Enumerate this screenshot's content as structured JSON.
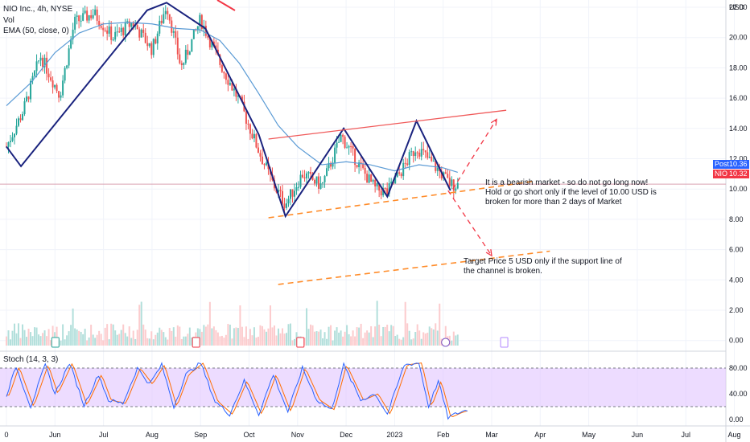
{
  "header": {
    "symbol_line": "NIO Inc., 4h, NYSE",
    "vol_label": "Vol",
    "ema_label": "EMA (50, close, 0)",
    "stoch_label": "Stoch (14, 3, 3)"
  },
  "price_tags": [
    {
      "name": "Post",
      "value": "10.36",
      "color": "#2962ff"
    },
    {
      "name": "NIO",
      "value": "10.32",
      "color": "#f23645"
    }
  ],
  "annotations": [
    {
      "lines": [
        "It is a bearish market - so do not go long now!",
        "Hold or go short only if the level of 10.00 USD is",
        "broken for more than 2 days of Market"
      ]
    },
    {
      "lines": [
        "Target Price 5 USD only if the support line of",
        "the channel is broken."
      ]
    }
  ],
  "colors": {
    "up": "#26a69a",
    "down": "#ef5350",
    "ema": "#5b9bd5",
    "pattern": "#1a237e",
    "resistance": "#f05a5a",
    "support": "#ff8c2a",
    "projection": "#f23645",
    "stoch_band": "#e1c4ff",
    "stoch_k": "#2962ff",
    "stoch_d": "#ff6d00"
  },
  "chart_data": [
    {
      "type": "candlestick",
      "unit": "USD",
      "y_ticks": [
        "22.00",
        "20.00",
        "18.00",
        "16.00",
        "14.00",
        "12.00",
        "10.00",
        "8.00",
        "6.00",
        "4.00",
        "2.00",
        "0.00"
      ],
      "x_ticks": [
        "0",
        "Jun",
        "Jul",
        "Aug",
        "Sep",
        "Oct",
        "Nov",
        "Dec",
        "2023",
        "Feb",
        "Mar",
        "Apr",
        "May",
        "Jun",
        "Jul",
        "Aug"
      ],
      "ylim": [
        -0.7,
        22.4
      ],
      "pattern_points": [
        {
          "x": 0.0,
          "y": 12.8
        },
        {
          "x": 0.3,
          "y": 11.5
        },
        {
          "x": 2.9,
          "y": 21.8
        },
        {
          "x": 3.3,
          "y": 22.3
        },
        {
          "x": 4.1,
          "y": 20.6
        },
        {
          "x": 5.2,
          "y": 13.6
        },
        {
          "x": 5.75,
          "y": 8.2
        },
        {
          "x": 6.95,
          "y": 14.0
        },
        {
          "x": 7.85,
          "y": 9.5
        },
        {
          "x": 8.45,
          "y": 14.5
        },
        {
          "x": 9.15,
          "y": 9.9
        }
      ],
      "resistance_line": [
        {
          "x": 5.4,
          "y": 13.3
        },
        {
          "x": 10.3,
          "y": 15.2
        }
      ],
      "support_line": [
        {
          "x": 5.4,
          "y": 8.1
        },
        {
          "x": 10.85,
          "y": 10.5
        }
      ],
      "target_line": [
        {
          "x": 5.6,
          "y": 3.7
        },
        {
          "x": 11.2,
          "y": 5.9
        }
      ],
      "projection_up": [
        {
          "x": 9.2,
          "y": 10.0
        },
        {
          "x": 10.1,
          "y": 14.6
        }
      ],
      "projection_down": [
        {
          "x": 9.1,
          "y": 9.9
        },
        {
          "x": 10.0,
          "y": 5.6
        }
      ],
      "ema_points": [
        {
          "x": 0.0,
          "y": 15.5
        },
        {
          "x": 0.5,
          "y": 17.0
        },
        {
          "x": 1.0,
          "y": 19.0
        },
        {
          "x": 1.5,
          "y": 20.3
        },
        {
          "x": 2.0,
          "y": 20.9
        },
        {
          "x": 2.5,
          "y": 21.0
        },
        {
          "x": 3.0,
          "y": 20.9
        },
        {
          "x": 3.5,
          "y": 20.6
        },
        {
          "x": 4.0,
          "y": 20.5
        },
        {
          "x": 4.4,
          "y": 19.8
        },
        {
          "x": 4.8,
          "y": 18.3
        },
        {
          "x": 5.2,
          "y": 16.3
        },
        {
          "x": 5.6,
          "y": 14.2
        },
        {
          "x": 6.0,
          "y": 12.8
        },
        {
          "x": 6.5,
          "y": 11.6
        },
        {
          "x": 7.0,
          "y": 11.8
        },
        {
          "x": 7.5,
          "y": 11.6
        },
        {
          "x": 8.0,
          "y": 11.2
        },
        {
          "x": 8.5,
          "y": 11.6
        },
        {
          "x": 9.0,
          "y": 11.4
        },
        {
          "x": 9.3,
          "y": 11.1
        }
      ],
      "price_anchors": [
        {
          "x": 0.0,
          "y": 12.8
        },
        {
          "x": 0.35,
          "y": 15.2
        },
        {
          "x": 0.7,
          "y": 18.8
        },
        {
          "x": 1.1,
          "y": 16.2
        },
        {
          "x": 1.4,
          "y": 21.0
        },
        {
          "x": 1.8,
          "y": 21.6
        },
        {
          "x": 2.2,
          "y": 20.0
        },
        {
          "x": 2.6,
          "y": 21.0
        },
        {
          "x": 3.0,
          "y": 19.2
        },
        {
          "x": 3.3,
          "y": 22.2
        },
        {
          "x": 3.6,
          "y": 18.0
        },
        {
          "x": 4.0,
          "y": 21.2
        },
        {
          "x": 4.4,
          "y": 18.3
        },
        {
          "x": 4.8,
          "y": 15.8
        },
        {
          "x": 5.2,
          "y": 12.5
        },
        {
          "x": 5.5,
          "y": 10.3
        },
        {
          "x": 5.75,
          "y": 9.0
        },
        {
          "x": 6.1,
          "y": 11.0
        },
        {
          "x": 6.5,
          "y": 10.2
        },
        {
          "x": 6.9,
          "y": 13.5
        },
        {
          "x": 7.3,
          "y": 11.4
        },
        {
          "x": 7.6,
          "y": 10.0
        },
        {
          "x": 7.85,
          "y": 9.8
        },
        {
          "x": 8.2,
          "y": 11.5
        },
        {
          "x": 8.45,
          "y": 12.8
        },
        {
          "x": 8.8,
          "y": 11.6
        },
        {
          "x": 9.15,
          "y": 10.3
        }
      ]
    },
    {
      "type": "line",
      "title": "Stoch (14, 3, 3)",
      "y_ticks": [
        "80.00",
        "40.00",
        "0.00"
      ],
      "band": [
        20,
        80
      ],
      "ylim": [
        -8,
        100
      ],
      "k_anchors": [
        {
          "x": 0.0,
          "y": 38
        },
        {
          "x": 0.2,
          "y": 82
        },
        {
          "x": 0.5,
          "y": 20
        },
        {
          "x": 0.8,
          "y": 85
        },
        {
          "x": 1.0,
          "y": 40
        },
        {
          "x": 1.3,
          "y": 88
        },
        {
          "x": 1.6,
          "y": 22
        },
        {
          "x": 1.9,
          "y": 70
        },
        {
          "x": 2.1,
          "y": 30
        },
        {
          "x": 2.4,
          "y": 25
        },
        {
          "x": 2.7,
          "y": 80
        },
        {
          "x": 2.95,
          "y": 55
        },
        {
          "x": 3.2,
          "y": 85
        },
        {
          "x": 3.45,
          "y": 20
        },
        {
          "x": 3.7,
          "y": 70
        },
        {
          "x": 4.0,
          "y": 88
        },
        {
          "x": 4.3,
          "y": 28
        },
        {
          "x": 4.6,
          "y": 8
        },
        {
          "x": 4.9,
          "y": 60
        },
        {
          "x": 5.2,
          "y": 8
        },
        {
          "x": 5.5,
          "y": 70
        },
        {
          "x": 5.8,
          "y": 12
        },
        {
          "x": 6.1,
          "y": 80
        },
        {
          "x": 6.4,
          "y": 30
        },
        {
          "x": 6.7,
          "y": 15
        },
        {
          "x": 6.95,
          "y": 85
        },
        {
          "x": 7.3,
          "y": 30
        },
        {
          "x": 7.6,
          "y": 40
        },
        {
          "x": 7.85,
          "y": 8
        },
        {
          "x": 8.2,
          "y": 85
        },
        {
          "x": 8.5,
          "y": 88
        },
        {
          "x": 8.7,
          "y": 20
        },
        {
          "x": 8.9,
          "y": 60
        },
        {
          "x": 9.1,
          "y": 3
        },
        {
          "x": 9.3,
          "y": 10
        },
        {
          "x": 9.5,
          "y": 15
        }
      ]
    }
  ]
}
